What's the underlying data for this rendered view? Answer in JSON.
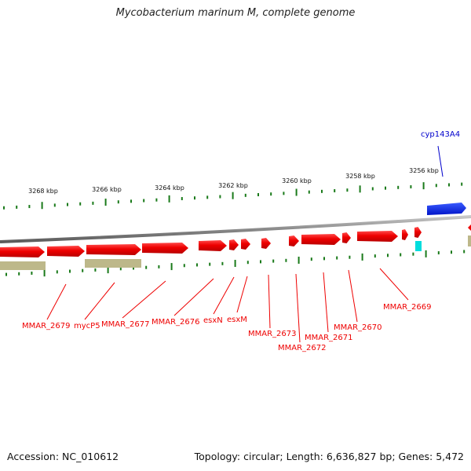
{
  "title": "Mycobacterium marinum M, complete genome",
  "footer": {
    "accession": "Accession: NC_010612",
    "summary": "Topology: circular; Length: 6,636,827 bp; Genes: 5,472"
  },
  "colors": {
    "forward_cds": "#ee0000",
    "reverse_cds_label": "#0000cc",
    "reverse_cds": "#0022dd",
    "rna": "#00dddd",
    "pseudo_band": "#bdb88a",
    "tick": "#1a7a1a",
    "backbone": "#8a8a8a",
    "label_line_red": "#ee0000",
    "label_line_blue": "#0000cc"
  },
  "kbp_labels": [
    "3268 kbp",
    "3266 kbp",
    "3264 kbp",
    "3262 kbp",
    "3260 kbp",
    "3258 kbp",
    "3256 kbp"
  ],
  "gene_labels": [
    {
      "text": "MMAR_2679",
      "color": "#ee0000"
    },
    {
      "text": "mycP5",
      "color": "#ee0000"
    },
    {
      "text": "MMAR_2677",
      "color": "#ee0000"
    },
    {
      "text": "MMAR_2676",
      "color": "#ee0000"
    },
    {
      "text": "esxN",
      "color": "#ee0000"
    },
    {
      "text": "esxM",
      "color": "#ee0000"
    },
    {
      "text": "MMAR_2673",
      "color": "#ee0000"
    },
    {
      "text": "MMAR_2672",
      "color": "#ee0000"
    },
    {
      "text": "MMAR_2671",
      "color": "#ee0000"
    },
    {
      "text": "MMAR_2670",
      "color": "#ee0000"
    },
    {
      "text": "MMAR_2669",
      "color": "#ee0000"
    },
    {
      "text": "cyp143A4",
      "color": "#0000cc"
    }
  ]
}
